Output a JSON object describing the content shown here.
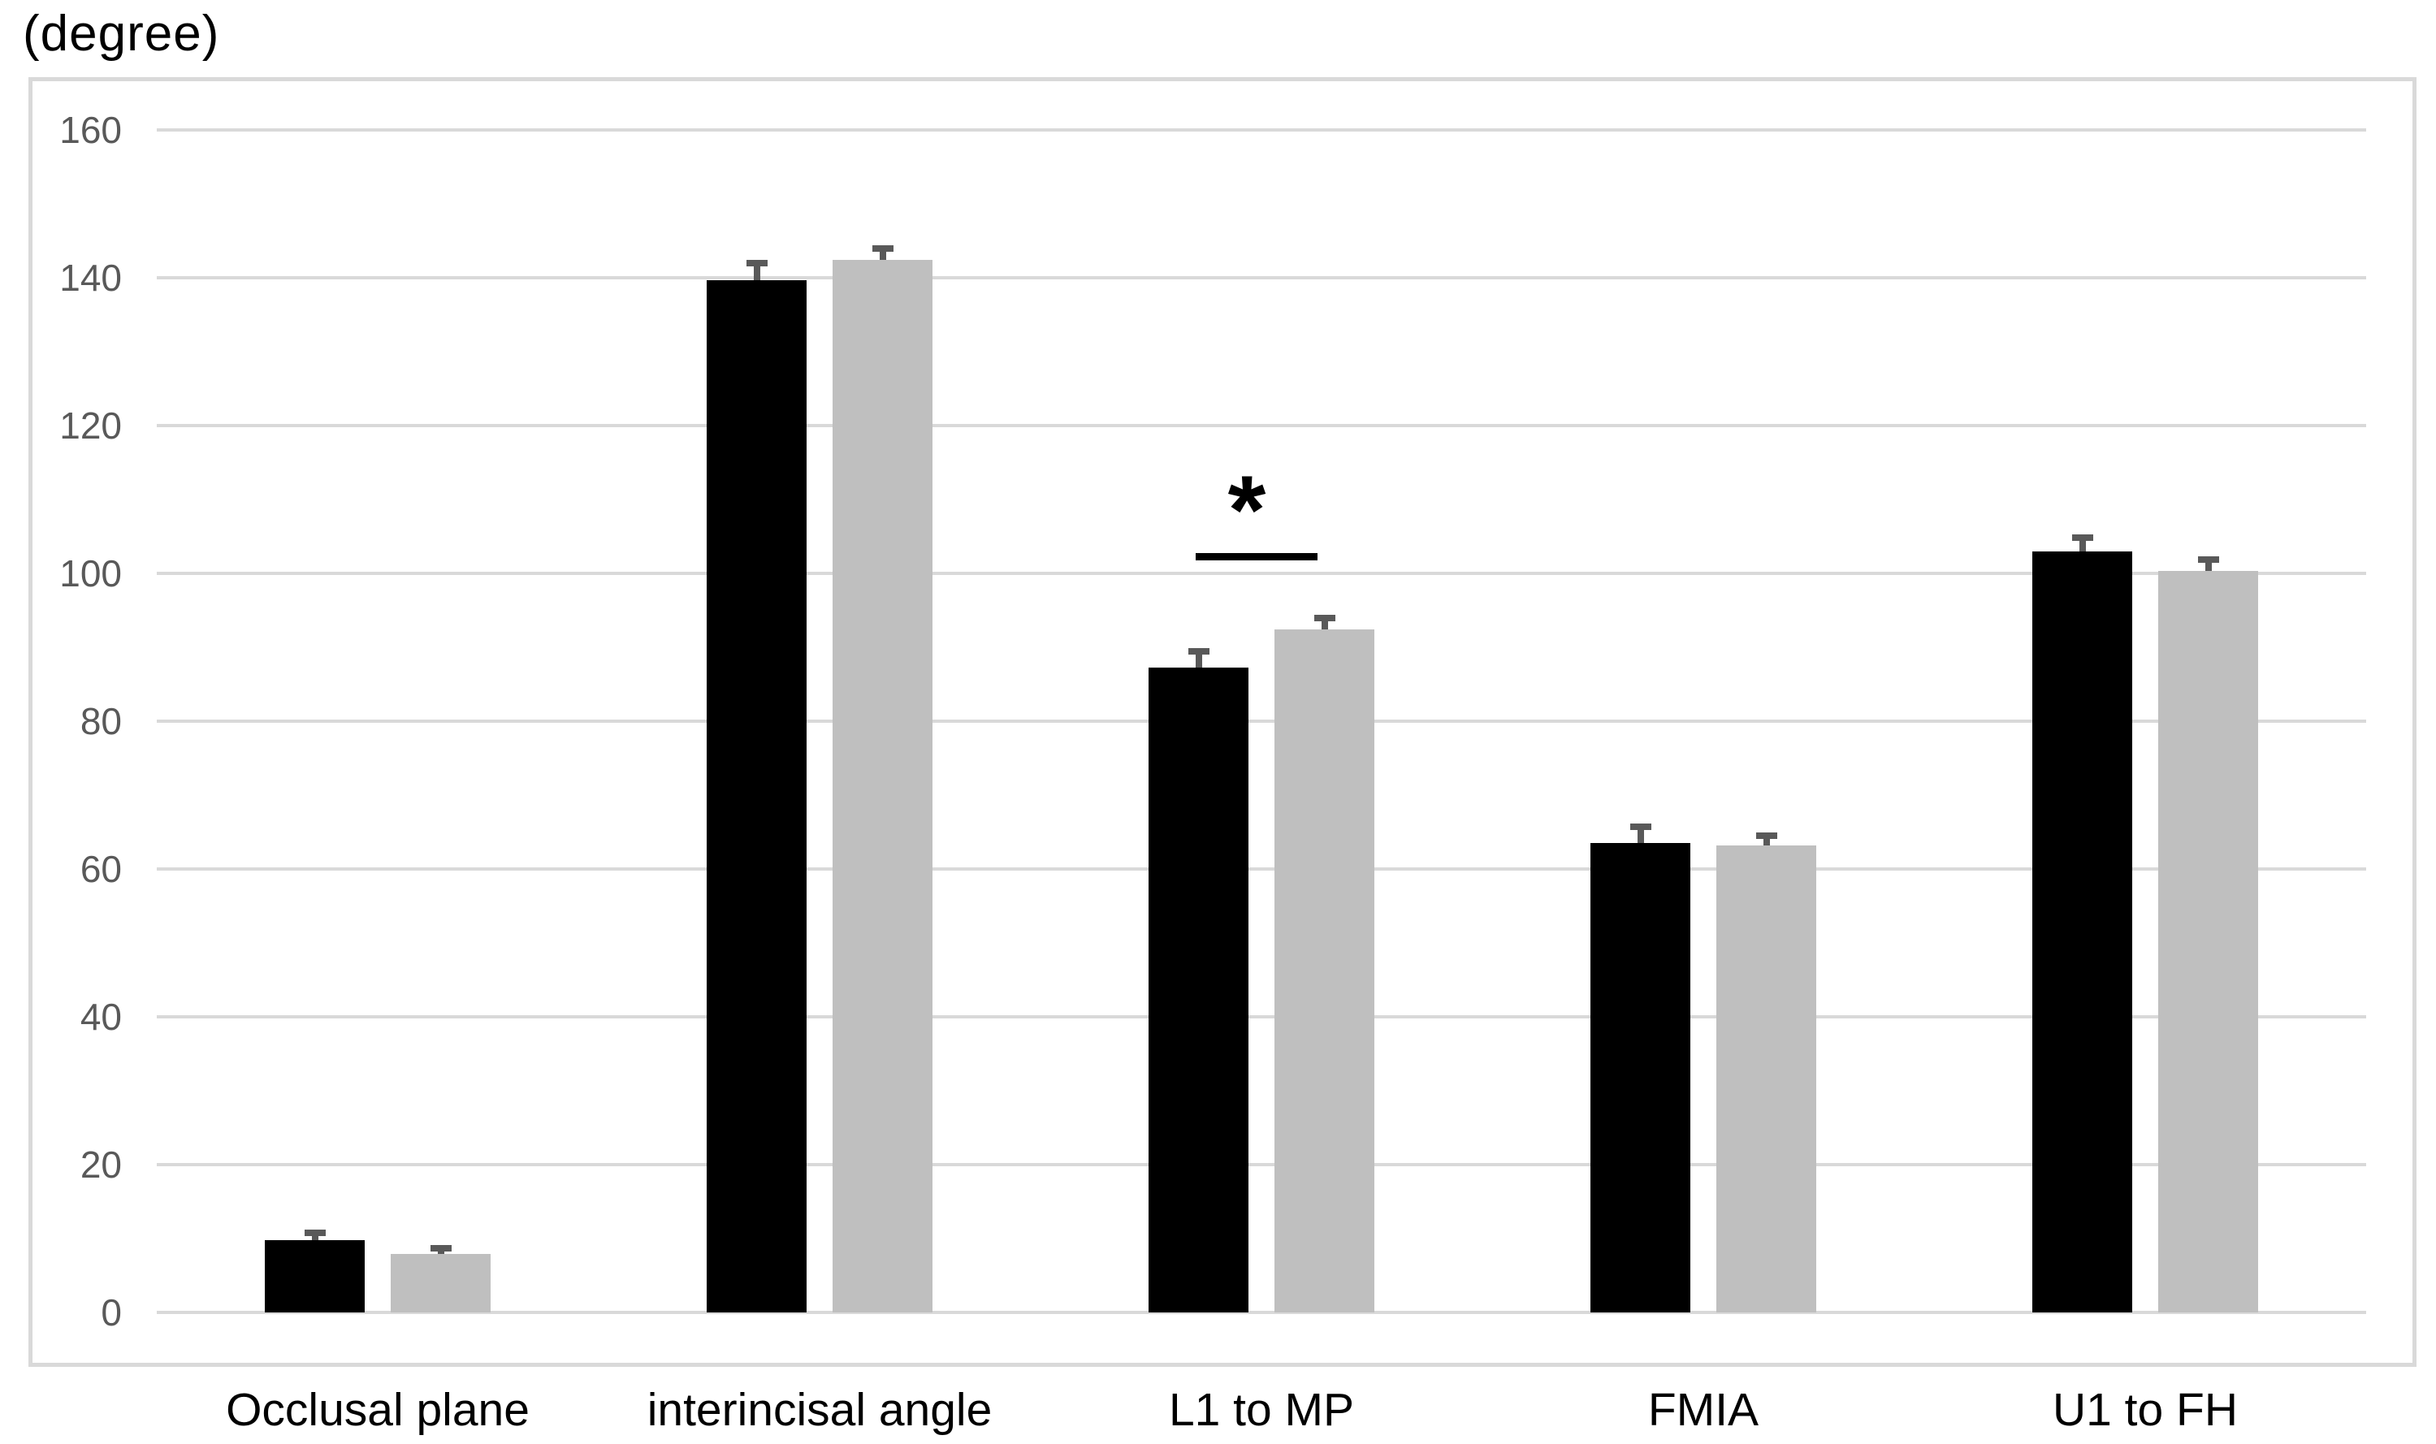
{
  "chart_data": {
    "type": "bar",
    "ylabel": "(degree)",
    "categories": [
      "Occlusal plane",
      "interincisal angle",
      "L1 to MP",
      "FMIA",
      "U1 to FH"
    ],
    "series": [
      {
        "name": "black",
        "color": "#000000",
        "values": [
          9.8,
          139.7,
          87.3,
          63.5,
          103.0
        ],
        "errors": [
          1.0,
          2.3,
          2.2,
          2.2,
          1.8
        ]
      },
      {
        "name": "gray",
        "color": "#bfbfbf",
        "values": [
          7.9,
          142.4,
          92.4,
          63.2,
          100.3
        ],
        "errors": [
          0.8,
          1.6,
          1.6,
          1.3,
          1.6
        ]
      }
    ],
    "ylim": [
      0,
      160
    ],
    "yticks": [
      0,
      20,
      40,
      60,
      80,
      100,
      120,
      140,
      160
    ],
    "grid": true,
    "legend": "none",
    "error_bar_color": "#595959",
    "gridline_color": "#d9d9d9",
    "plot_border_color": "#d9d9d9",
    "tick_label_color": "#595959",
    "category_label_color": "#000000",
    "significance": {
      "symbol": "*",
      "category": "L1 to MP",
      "category_index": 2,
      "line_value": 102.7
    }
  }
}
